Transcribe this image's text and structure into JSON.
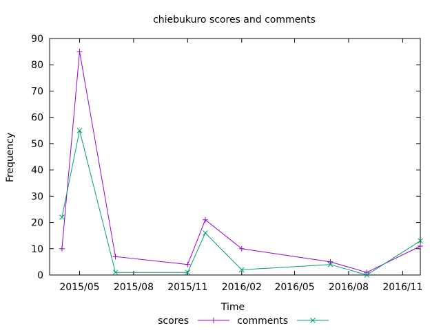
{
  "chart_data": {
    "type": "line",
    "title": "chiebukuro scores and comments",
    "xlabel": "Time",
    "ylabel": "Frequency",
    "ylim": [
      0,
      90
    ],
    "yticks": [
      0,
      10,
      20,
      30,
      40,
      50,
      60,
      70,
      80,
      90
    ],
    "xlim": [
      "2015-03-11",
      "2016-12-01"
    ],
    "xticks": [
      {
        "label": "2015/05",
        "date": "2015-05-01"
      },
      {
        "label": "2015/08",
        "date": "2015-08-01"
      },
      {
        "label": "2015/11",
        "date": "2015-11-01"
      },
      {
        "label": "2016/02",
        "date": "2016-02-01"
      },
      {
        "label": "2016/05",
        "date": "2016-05-01"
      },
      {
        "label": "2016/08",
        "date": "2016-08-01"
      },
      {
        "label": "2016/11",
        "date": "2016-11-01"
      }
    ],
    "legend_position": "bottom",
    "series": [
      {
        "name": "scores",
        "color": "#9400d3",
        "marker": "plus",
        "points": [
          {
            "date": "2015-04-01",
            "value": 10
          },
          {
            "date": "2015-05-01",
            "value": 85
          },
          {
            "date": "2015-07-01",
            "value": 7
          },
          {
            "date": "2015-11-01",
            "value": 4
          },
          {
            "date": "2015-12-01",
            "value": 21
          },
          {
            "date": "2016-02-01",
            "value": 10
          },
          {
            "date": "2016-07-01",
            "value": 5
          },
          {
            "date": "2016-09-01",
            "value": 1
          },
          {
            "date": "2016-12-01",
            "value": 11
          }
        ]
      },
      {
        "name": "comments",
        "color": "#009e73",
        "marker": "cross",
        "points": [
          {
            "date": "2015-04-01",
            "value": 22
          },
          {
            "date": "2015-05-01",
            "value": 55
          },
          {
            "date": "2015-07-01",
            "value": 1
          },
          {
            "date": "2015-11-01",
            "value": 1
          },
          {
            "date": "2015-12-01",
            "value": 16
          },
          {
            "date": "2016-02-01",
            "value": 2
          },
          {
            "date": "2016-07-01",
            "value": 4
          },
          {
            "date": "2016-09-01",
            "value": 0
          },
          {
            "date": "2016-12-01",
            "value": 13
          }
        ]
      }
    ]
  }
}
